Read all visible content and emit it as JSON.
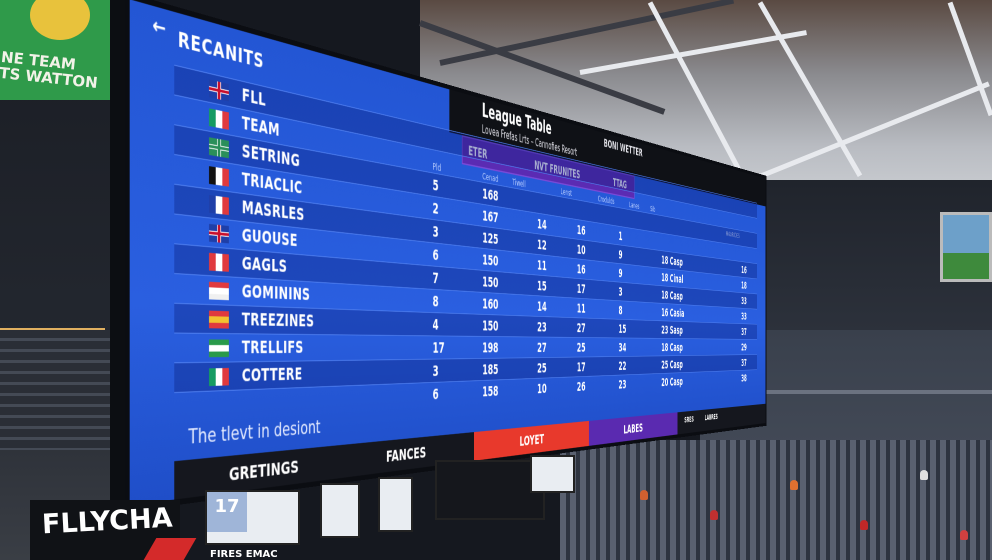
{
  "left_sign": {
    "text": "NE TEAM\nTS WATTON"
  },
  "board": {
    "back_icon": "arrow-left-icon",
    "title": "RECANITS",
    "header": {
      "title": "League Table",
      "subtitle": "Lovea Frefas Lrts – Cannofies Resort",
      "extra": "BONI WETTER"
    },
    "purple_bar": {
      "left": "ETER",
      "center": "NVT FRUNITES",
      "right": "TTAG"
    },
    "columns": [
      "Pld",
      "Cenad",
      "Tiwell",
      "Lenst",
      "Crodulds",
      "Lanes",
      "Sib",
      "MAARIDES"
    ],
    "rows": [
      {
        "flag": [
          "#1f3fa8",
          "#ffffff",
          "#c8102e"
        ],
        "flag_type": "uk",
        "team": "FLL",
        "values": []
      },
      {
        "flag": [
          "#169b62",
          "#ffffff",
          "#e03a3e"
        ],
        "team": "TEAM",
        "values": []
      },
      {
        "flag": [
          "#2a8f5a",
          "#ffffff",
          "#2a8f5a"
        ],
        "flag_type": "cross",
        "team": "SETRING",
        "values": [
          "5",
          "168"
        ]
      },
      {
        "flag": [
          "#111111",
          "#ffffff",
          "#e03a3e"
        ],
        "team": "TRIACLIC",
        "values": [
          "2",
          "167",
          "14",
          "16",
          "1"
        ]
      },
      {
        "flag": [
          "#1f3fa8",
          "#ffffff",
          "#e03a3e"
        ],
        "team": "MASRLES",
        "values": [
          "3",
          "125",
          "12",
          "10",
          "9",
          "18 Casp",
          "16"
        ]
      },
      {
        "flag": [
          "#1f3fa8",
          "#ffffff",
          "#c8102e"
        ],
        "flag_type": "uk",
        "team": "GUOUSE",
        "values": [
          "6",
          "150",
          "11",
          "16",
          "9",
          "18 Cinal",
          "18"
        ]
      },
      {
        "flag": [
          "#e03a3e",
          "#ffffff",
          "#e03a3e"
        ],
        "team": "GAGLS",
        "values": [
          "7",
          "150",
          "15",
          "17",
          "3",
          "18 Casp",
          "33"
        ]
      },
      {
        "flag": [
          "#e03a3e",
          "#ffffff",
          "#f0f0f0"
        ],
        "flag_type": "h",
        "team": "GOMININS",
        "values": [
          "8",
          "160",
          "14",
          "11",
          "8",
          "16 Casia",
          "33"
        ]
      },
      {
        "flag": [
          "#e03a3e",
          "#f2c230",
          "#e03a3e"
        ],
        "flag_type": "h",
        "team": "TREEZINES",
        "values": [
          "4",
          "150",
          "23",
          "27",
          "15",
          "23 Sasp",
          "37"
        ]
      },
      {
        "flag": [
          "#2a9a4a",
          "#ffffff",
          "#2a9a4a"
        ],
        "flag_type": "h",
        "team": "TRELLIFS",
        "values": [
          "17",
          "198",
          "27",
          "25",
          "34",
          "18 Casp",
          "29"
        ]
      },
      {
        "flag": [
          "#169b62",
          "#ffffff",
          "#e03a3e"
        ],
        "team": "COTTERE",
        "values": [
          "3",
          "185",
          "25",
          "17",
          "22",
          "25 Casp",
          "37"
        ]
      },
      {
        "flag": [],
        "team": "",
        "values": [
          "6",
          "158",
          "10",
          "26",
          "23",
          "20 Casp",
          "38"
        ]
      }
    ],
    "tagline": "The tlevt in desiont",
    "band": {
      "a": "GRETINGS",
      "b": "FANCES",
      "red": "LOYET",
      "purple": "LABES",
      "c": "SRES",
      "d": "LABRES"
    }
  },
  "ads": {
    "flly": "FLLYCHA",
    "date_card": "17",
    "sponsor": "FIRES EMAC"
  },
  "colors": {
    "board_blue": "#2a5fe0",
    "purple": "#5b2bb3",
    "red": "#e8392c"
  }
}
